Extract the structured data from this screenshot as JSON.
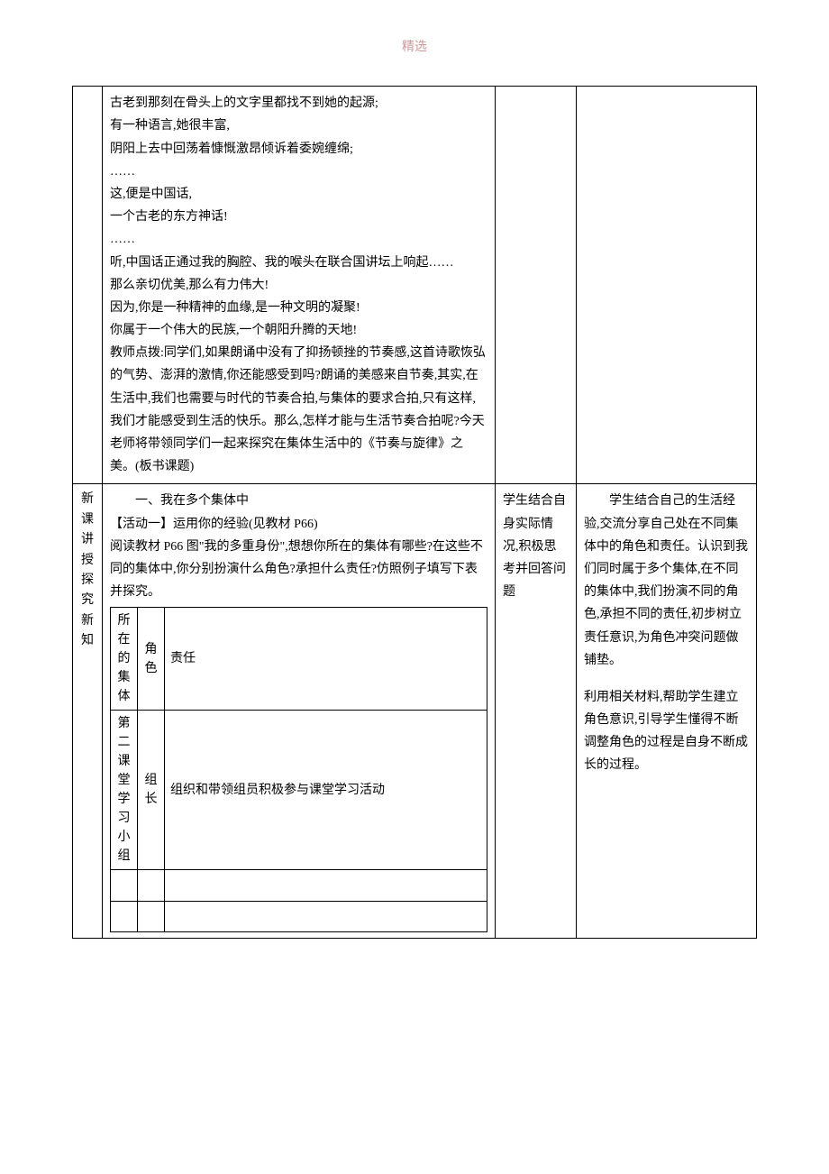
{
  "header": "精选",
  "row1": {
    "content": {
      "line1": "古老到那刻在骨头上的文字里都找不到她的起源;",
      "line2": "有一种语言,她很丰富,",
      "line3": "阴阳上去中回荡着慷慨激昂倾诉着委婉缠绵;",
      "line4": "……",
      "line5": "这,便是中国话,",
      "line6": "一个古老的东方神话!",
      "line7": "……",
      "line8": "听,中国话正通过我的胸腔、我的喉头在联合国讲坛上响起……",
      "line9": "那么亲切优美,那么有力伟大!",
      "line10": "因为,你是一种精神的血缘,是一种文明的凝聚!",
      "line11": "你属于一个伟大的民族,一个朝阳升腾的天地!",
      "line12": "教师点拨:同学们,如果朗诵中没有了抑扬顿挫的节奏感,这首诗歌恢弘的气势、澎湃的激情,你还能感受到吗?朗诵的美感来自节奏,其实,在生活中,我们也需要与时代的节奏合拍,与集体的要求合拍,只有这样,我们才能感受到生活的快乐。那么,怎样才能与生活节奏合拍呢?今天老师将带领同学们一起来探究在集体生活中的《节奏与旋律》之美。(板书课题)"
    }
  },
  "row2": {
    "label": "新课讲授探究新知",
    "content": {
      "title": "一、我在多个集体中",
      "activity": "【活动一】运用你的经验(见教材 P66)",
      "instruction": "阅读教材 P66 图\"我的多重身份\",想想你所在的集体有哪些?在这些不同的集体中,你分别扮演什么角色?承担什么责任?仿照例子填写下表并探究。",
      "innerTable": {
        "header": {
          "c1": "所在的集体",
          "c2": "角色",
          "c3": "责任"
        },
        "r1": {
          "c1": "第二课堂学习小组",
          "c2": "组长",
          "c3": "组织和带领组员积极参与课堂学习活动"
        }
      }
    },
    "student": "学生结合自身实际情况,积极思考并回答问题",
    "notes": {
      "p1": "学生结合自己的生活经验,交流分享自己处在不同集体中的角色和责任。认识到我们同时属于多个集体,在不同的集体中,我们扮演不同的角色,承担不同的责任,初步树立责任意识,为角色冲突问题做铺垫。",
      "p2": "利用相关材料,帮助学生建立角色意识,引导学生懂得不断调整角色的过程是自身不断成长的过程。"
    }
  }
}
